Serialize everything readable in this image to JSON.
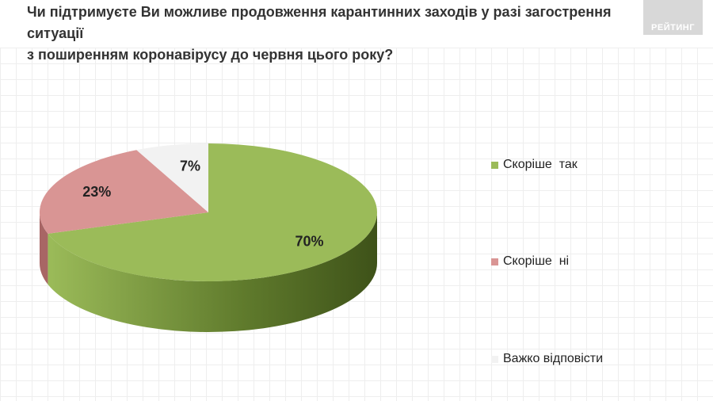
{
  "header": {
    "title_line1": "Чи підтримуєте Ви можливе продовження карантинних заходів у разі загострення ситуації",
    "title_line2": "з поширенням коронавірусу до червня цього року?",
    "logo_text": "РЕЙТИНГ"
  },
  "chart_data": {
    "type": "pie",
    "title": "Чи підтримуєте Ви можливе продовження карантинних заходів у разі загострення ситуації з поширенням коронавірусу до червня цього року?",
    "three_d": true,
    "legend_position": "right",
    "slices": [
      {
        "label": "Скоріше  так",
        "value": 70,
        "display": "70%",
        "color": "#9bbb59",
        "side_color": "#5f7a2c"
      },
      {
        "label": "Скоріше  ні",
        "value": 23,
        "display": "23%",
        "color": "#d99594",
        "side_color": "#a86665"
      },
      {
        "label": "Важко відповісти",
        "value": 7,
        "display": "7%",
        "color": "#f2f2f2",
        "side_color": "#c8c8c8"
      }
    ]
  }
}
